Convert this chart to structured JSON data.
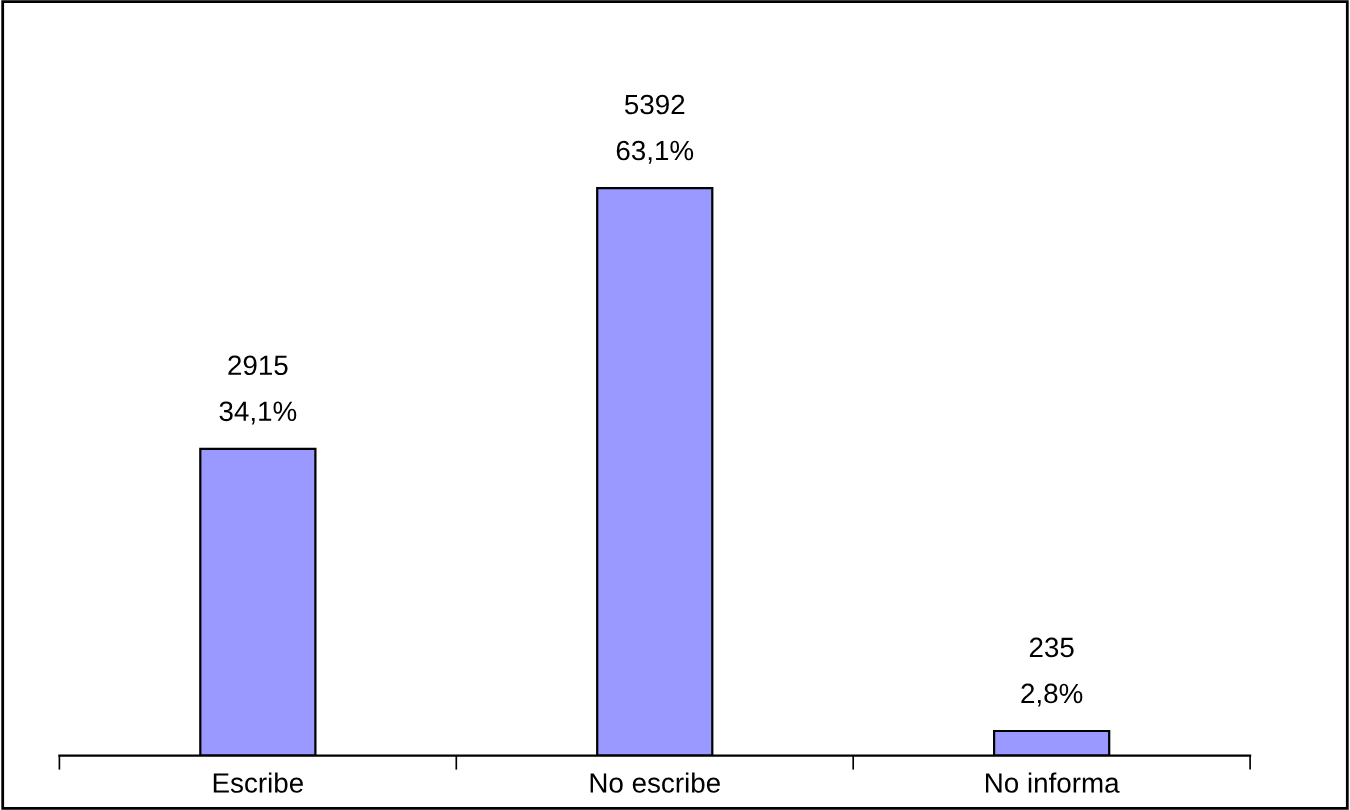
{
  "chart_data": {
    "type": "bar",
    "categories": [
      "Escribe",
      "No escribe",
      "No informa"
    ],
    "values": [
      2915,
      5392,
      235
    ],
    "value_labels": [
      "2915\n34,1%",
      "5392\n63,1%",
      "235\n2,8%"
    ],
    "color": "#9999ff",
    "grid": false,
    "legend": false
  }
}
